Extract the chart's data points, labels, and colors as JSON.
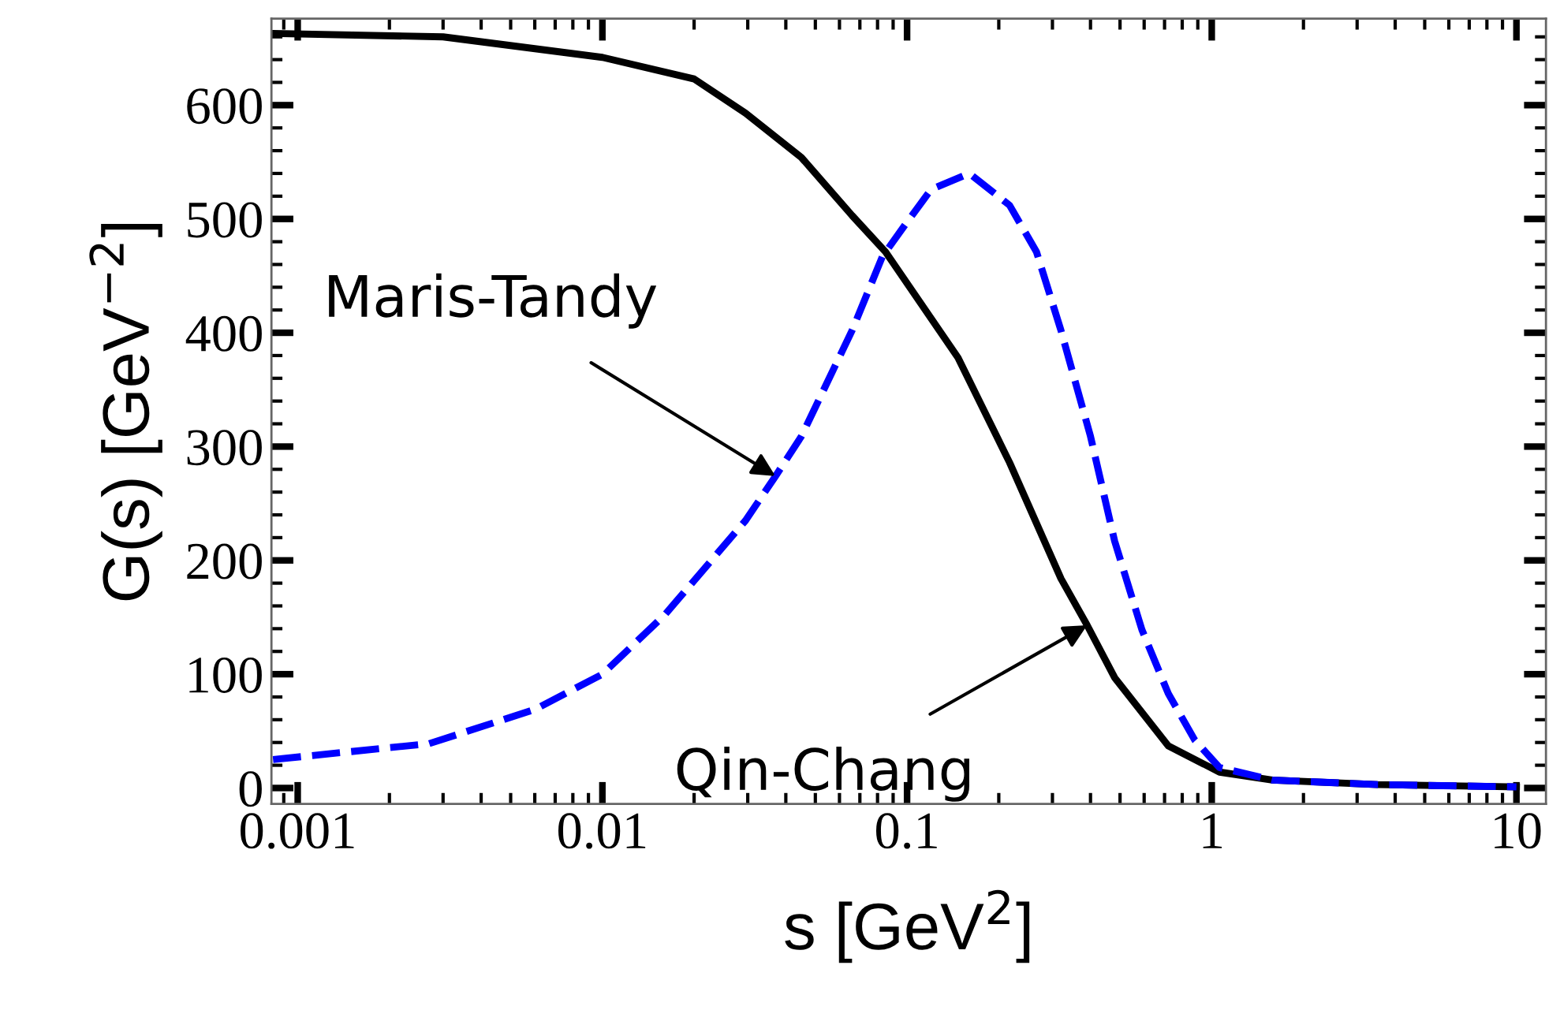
{
  "chart_data": {
    "type": "line",
    "xlabel": "s [GeV$^{2}$]",
    "ylabel": "G(s) [GeV$^{−2}$]",
    "log": "x",
    "grid": false,
    "legend": false,
    "marker": "none",
    "xlim": [
      0.00082,
      12.5
    ],
    "ylim": [
      -14,
      676
    ],
    "xticks": [
      0.001,
      0.01,
      0.1,
      1,
      10
    ],
    "yticks": [
      0,
      100,
      200,
      300,
      400,
      500,
      600
    ],
    "series": [
      {
        "color": "#000000",
        "line_style": "solid",
        "x": [
          0.00083,
          0.003,
          0.01,
          0.02,
          0.0295,
          0.045,
          0.066,
          0.085,
          0.147,
          0.217,
          0.32,
          0.39,
          0.48,
          0.72,
          1.06,
          1.58,
          3.5,
          10
        ],
        "values": [
          663,
          660,
          642,
          623,
          593,
          554,
          503,
          471,
          378,
          286,
          184,
          143,
          97,
          37,
          14,
          7,
          3,
          1
        ]
      },
      {
        "color": "#0000ff",
        "line_style": "dashed",
        "x": [
          0.00083,
          0.0027,
          0.006,
          0.01,
          0.016,
          0.0295,
          0.037,
          0.045,
          0.066,
          0.083,
          0.098,
          0.12,
          0.16,
          0.217,
          0.266,
          0.32,
          0.4,
          0.48,
          0.59,
          0.72,
          0.88,
          1.06,
          1.58,
          3.5,
          10
        ],
        "values": [
          25,
          39,
          69,
          100,
          152,
          235,
          274,
          309,
          402,
          467,
          494,
          526,
          540,
          512,
          471,
          402,
          309,
          217,
          139,
          83,
          42,
          18,
          7,
          3,
          1
        ]
      }
    ],
    "annotations": [
      {
        "text": "Maris-Tandy",
        "x": 0.037,
        "y": 274
      },
      {
        "text": "Qin-Chang",
        "x": 0.39,
        "y": 143
      }
    ]
  }
}
